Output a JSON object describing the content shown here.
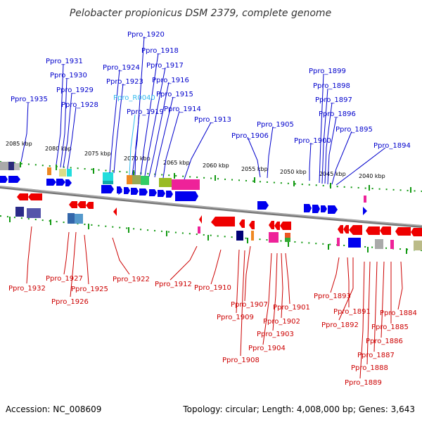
{
  "title": "Pelobacter propionicus DSM 2379, complete genome",
  "footer": {
    "accession": "Accession: NC_008609",
    "summary": "Topology: circular; Length: 4,008,000 bp; Genes: 3,643"
  },
  "colors": {
    "forward": "#0000ee",
    "reverse": "#ee0000",
    "rna_label": "#33bbee",
    "backbone": "#888888",
    "tick": "#119911"
  },
  "scale_labels": [
    "2085 kbp",
    "2080 kbp",
    "2075 kbp",
    "2070 kbp",
    "2065 kbp",
    "2060 kbp",
    "2055 kbp",
    "2050 kbp",
    "2045 kbp",
    "2040 kbp"
  ],
  "top_genes": [
    {
      "name": "Ppro_1935",
      "kind": "cds"
    },
    {
      "name": "Ppro_1931",
      "kind": "cds"
    },
    {
      "name": "Ppro_1930",
      "kind": "cds"
    },
    {
      "name": "Ppro_1929",
      "kind": "cds"
    },
    {
      "name": "Ppro_1928",
      "kind": "cds"
    },
    {
      "name": "Ppro_1924",
      "kind": "cds"
    },
    {
      "name": "Ppro_1923",
      "kind": "cds"
    },
    {
      "name": "Ppro_1920",
      "kind": "cds"
    },
    {
      "name": "Ppro_1918",
      "kind": "cds"
    },
    {
      "name": "Ppro_1917",
      "kind": "cds"
    },
    {
      "name": "Ppro_1916",
      "kind": "cds"
    },
    {
      "name": "Ppro_R0040",
      "kind": "rna"
    },
    {
      "name": "Ppro_1915",
      "kind": "cds"
    },
    {
      "name": "Ppro_1919",
      "kind": "cds"
    },
    {
      "name": "Ppro_1914",
      "kind": "cds"
    },
    {
      "name": "Ppro_1913",
      "kind": "cds"
    },
    {
      "name": "Ppro_1906",
      "kind": "cds"
    },
    {
      "name": "Ppro_1905",
      "kind": "cds"
    },
    {
      "name": "Ppro_1900",
      "kind": "cds"
    },
    {
      "name": "Ppro_1899",
      "kind": "cds"
    },
    {
      "name": "Ppro_1898",
      "kind": "cds"
    },
    {
      "name": "Ppro_1897",
      "kind": "cds"
    },
    {
      "name": "Ppro_1896",
      "kind": "cds"
    },
    {
      "name": "Ppro_1895",
      "kind": "cds"
    },
    {
      "name": "Ppro_1894",
      "kind": "cds"
    }
  ],
  "bottom_genes": [
    {
      "name": "Ppro_1932"
    },
    {
      "name": "Ppro_1927"
    },
    {
      "name": "Ppro_1926"
    },
    {
      "name": "Ppro_1925"
    },
    {
      "name": "Ppro_1922"
    },
    {
      "name": "Ppro_1912"
    },
    {
      "name": "Ppro_1910"
    },
    {
      "name": "Ppro_1907"
    },
    {
      "name": "Ppro_1909"
    },
    {
      "name": "Ppro_1908"
    },
    {
      "name": "Ppro_1901"
    },
    {
      "name": "Ppro_1902"
    },
    {
      "name": "Ppro_1903"
    },
    {
      "name": "Ppro_1904"
    },
    {
      "name": "Ppro_1893"
    },
    {
      "name": "Ppro_1891"
    },
    {
      "name": "Ppro_1892"
    },
    {
      "name": "Ppro_1884"
    },
    {
      "name": "Ppro_1885"
    },
    {
      "name": "Ppro_1886"
    },
    {
      "name": "Ppro_1887"
    },
    {
      "name": "Ppro_1888"
    },
    {
      "name": "Ppro_1889"
    }
  ]
}
